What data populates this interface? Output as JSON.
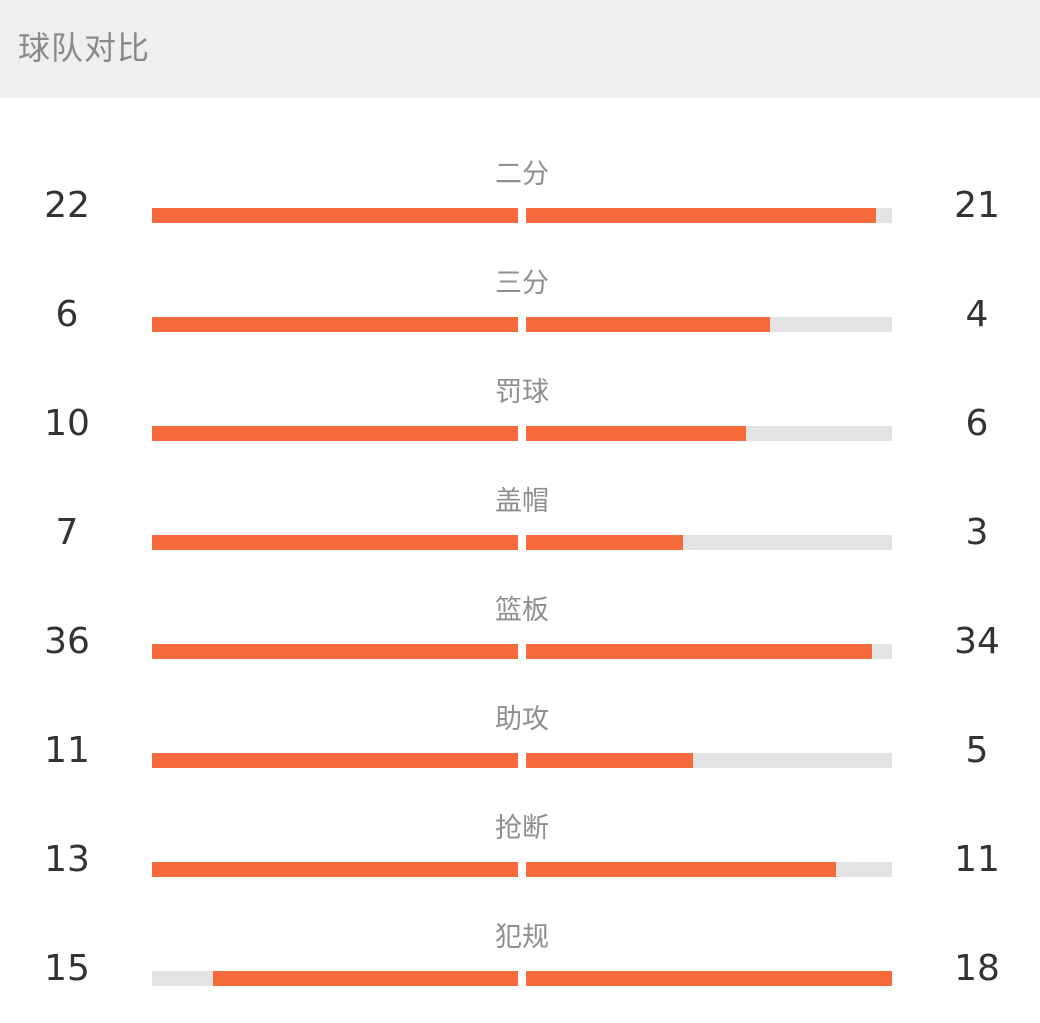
{
  "header": {
    "title": "球队对比"
  },
  "accent_color": "#f46a3a",
  "track_color": "#e3e3e3",
  "stats": [
    {
      "label": "二分",
      "left": "22",
      "right": "21",
      "left_fill": 1.0,
      "right_fill": 0.955
    },
    {
      "label": "三分",
      "left": "6",
      "right": "4",
      "left_fill": 1.0,
      "right_fill": 0.667
    },
    {
      "label": "罚球",
      "left": "10",
      "right": "6",
      "left_fill": 1.0,
      "right_fill": 0.6
    },
    {
      "label": "盖帽",
      "left": "7",
      "right": "3",
      "left_fill": 1.0,
      "right_fill": 0.429
    },
    {
      "label": "篮板",
      "left": "36",
      "right": "34",
      "left_fill": 1.0,
      "right_fill": 0.944
    },
    {
      "label": "助攻",
      "left": "11",
      "right": "5",
      "left_fill": 1.0,
      "right_fill": 0.455
    },
    {
      "label": "抢断",
      "left": "13",
      "right": "11",
      "left_fill": 1.0,
      "right_fill": 0.846
    },
    {
      "label": "犯规",
      "left": "15",
      "right": "18",
      "left_fill": 0.833,
      "right_fill": 1.0
    }
  ]
}
